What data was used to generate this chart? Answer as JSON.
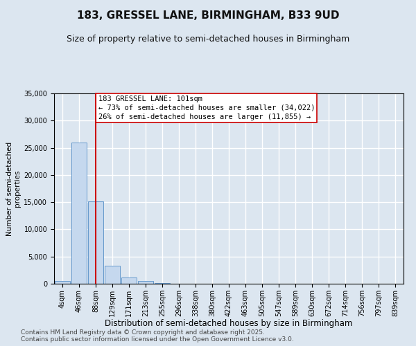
{
  "title": "183, GRESSEL LANE, BIRMINGHAM, B33 9UD",
  "subtitle": "Size of property relative to semi-detached houses in Birmingham",
  "xlabel": "Distribution of semi-detached houses by size in Birmingham",
  "ylabel": "Number of semi-detached\nproperties",
  "categories": [
    "4sqm",
    "46sqm",
    "88sqm",
    "129sqm",
    "171sqm",
    "213sqm",
    "255sqm",
    "296sqm",
    "338sqm",
    "380sqm",
    "422sqm",
    "463sqm",
    "505sqm",
    "547sqm",
    "589sqm",
    "630sqm",
    "672sqm",
    "714sqm",
    "756sqm",
    "797sqm",
    "839sqm"
  ],
  "values": [
    480,
    26000,
    15200,
    3300,
    1200,
    480,
    180,
    60,
    20,
    5,
    2,
    1,
    0,
    0,
    0,
    0,
    0,
    0,
    0,
    0,
    0
  ],
  "bar_color": "#c5d8ee",
  "bar_edge_color": "#6699cc",
  "vline_x_index": 2,
  "vline_color": "#cc0000",
  "annotation_text": "183 GRESSEL LANE: 101sqm\n← 73% of semi-detached houses are smaller (34,022)\n26% of semi-detached houses are larger (11,855) →",
  "annotation_box_color": "#ffffff",
  "annotation_box_edge": "#cc0000",
  "ylim": [
    0,
    35000
  ],
  "yticks": [
    0,
    5000,
    10000,
    15000,
    20000,
    25000,
    30000,
    35000
  ],
  "background_color": "#dce6f0",
  "plot_bg_color": "#dce6f0",
  "grid_color": "#ffffff",
  "footer": "Contains HM Land Registry data © Crown copyright and database right 2025.\nContains public sector information licensed under the Open Government Licence v3.0.",
  "title_fontsize": 11,
  "subtitle_fontsize": 9,
  "xlabel_fontsize": 8.5,
  "ylabel_fontsize": 7.5,
  "tick_fontsize": 7,
  "footer_fontsize": 6.5,
  "annot_fontsize": 7.5
}
